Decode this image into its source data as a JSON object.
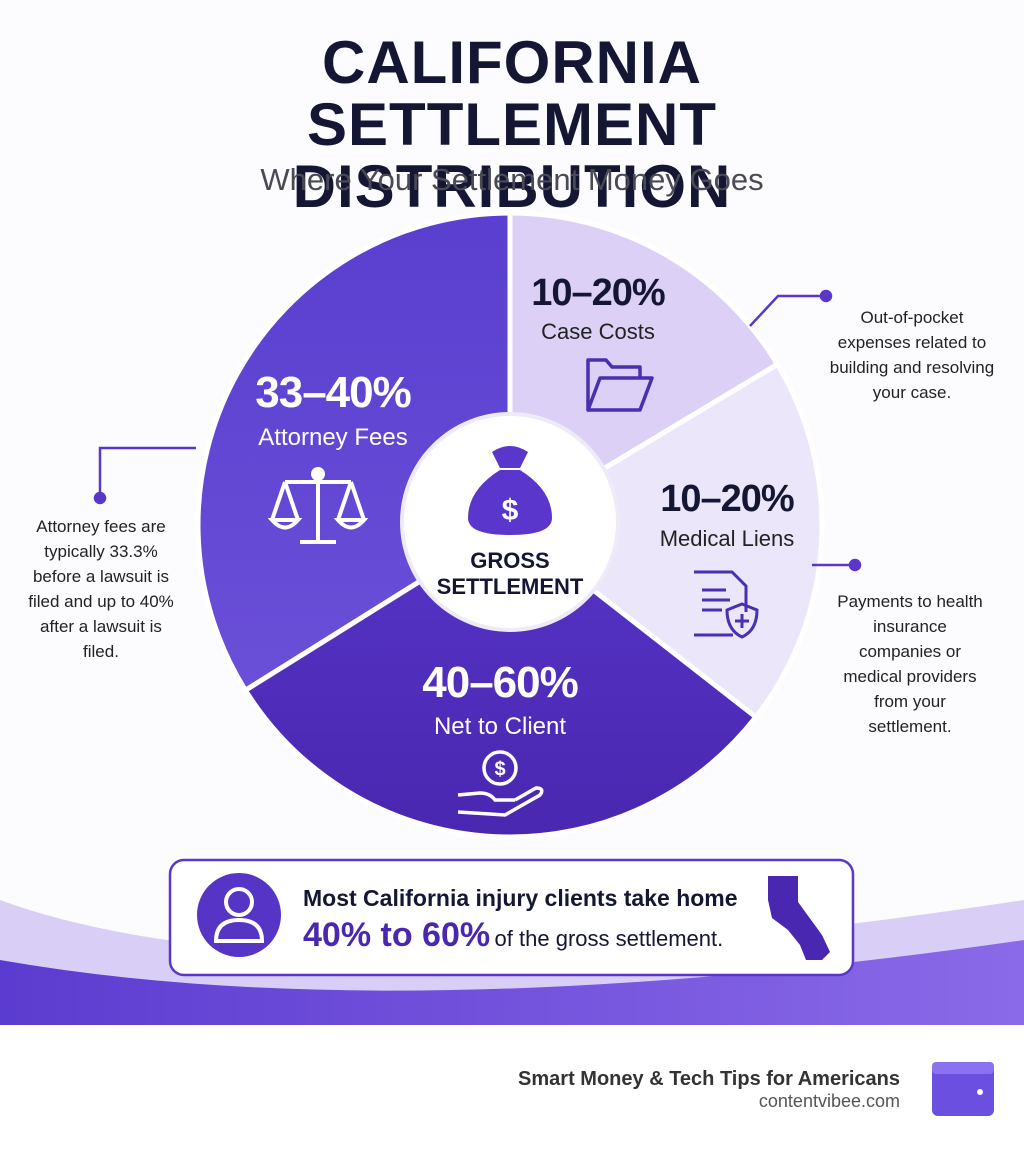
{
  "header": {
    "title": "CALIFORNIA SETTLEMENT DISTRIBUTION",
    "subtitle": "Where Your Settlement Money Goes"
  },
  "segments": [
    {
      "percent": "33–40%",
      "label": "Attorney Fees",
      "note": "Attorney fees are typically 33.3% before a lawsuit is filed and up to 40% after a lawsuit is filed."
    },
    {
      "percent": "10–20%",
      "label": "Case Costs",
      "note": "Out-of-pocket expenses related to building and resolving your case."
    },
    {
      "percent": "10–20%",
      "label": "Medical Liens",
      "note": "Payments to health insurance companies or medical providers from your settlement."
    },
    {
      "percent": "40–60%",
      "label": "Net to Client"
    }
  ],
  "center": {
    "label": "GROSS SETTLEMENT"
  },
  "callout": {
    "text": "Most California injury clients take home",
    "highlight": "40% to 60%",
    "rest": "of the gross settlement."
  },
  "footer": {
    "tagline": "Smart Money & Tech Tips for Americans",
    "site": "contentvibee.com"
  }
}
